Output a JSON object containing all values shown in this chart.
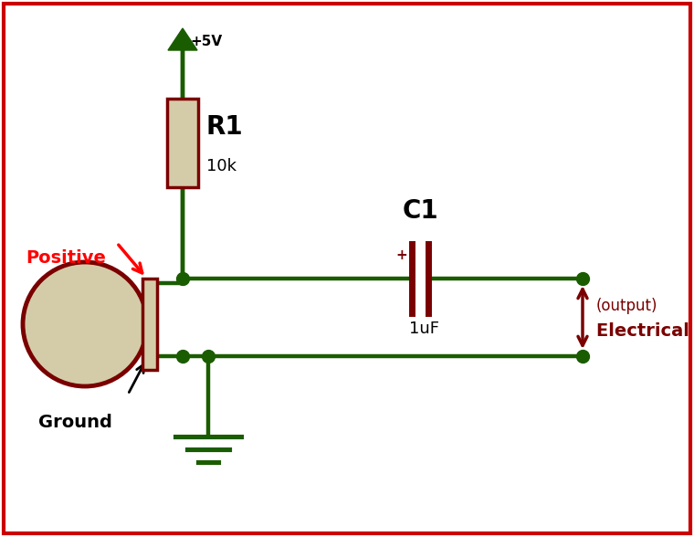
{
  "bg_color": "#ffffff",
  "border_color": "#cc0000",
  "wire_color": "#1a5c00",
  "comp_border": "#7a0000",
  "comp_fill": "#d4cca8",
  "dot_color": "#1a5c00",
  "black": "#000000",
  "red": "#ff0000",
  "dark_red": "#7a0000",
  "vcc_label": "+5V",
  "r1_label": "R1",
  "r1_value": "10k",
  "c1_label": "C1",
  "c1_value": "1uF",
  "positive_label": "Positive",
  "ground_label": "Ground",
  "output_label": "(output)",
  "signal_label": "Electrical Signals",
  "figw": 7.6,
  "figh": 5.88,
  "dpi": 100
}
